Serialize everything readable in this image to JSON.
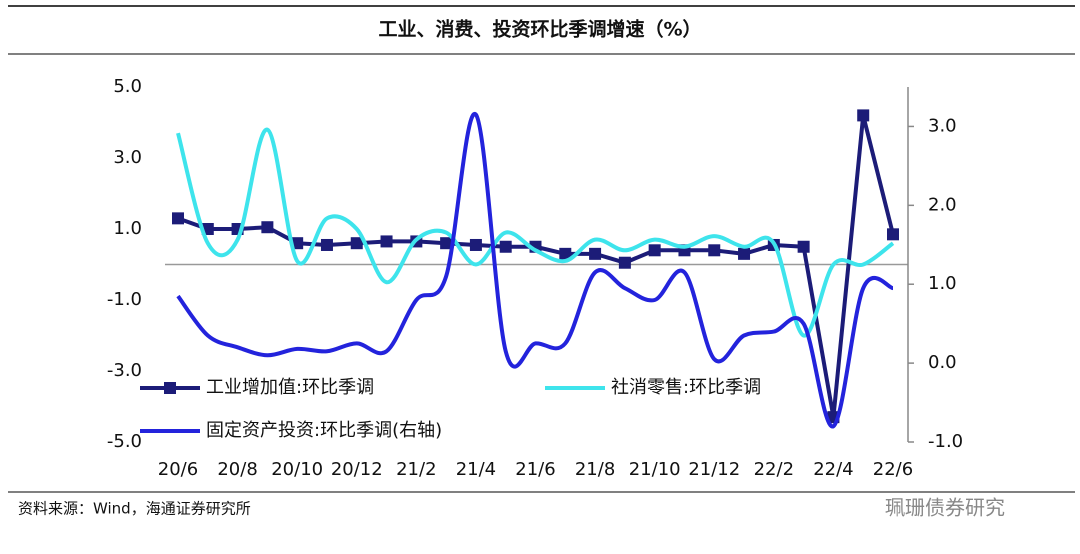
{
  "chart_data": {
    "type": "line",
    "title": "工业、消费、投资环比季调增速（%）",
    "categories": [
      "20/6",
      null,
      "20/8",
      null,
      "20/10",
      null,
      "20/12",
      null,
      "21/2",
      null,
      "21/4",
      null,
      "21/6",
      null,
      "21/8",
      null,
      "21/10",
      null,
      "21/12",
      null,
      "22/2",
      null,
      "22/4",
      null,
      "22/6"
    ],
    "ylim": [
      -5,
      5
    ],
    "yticks": [
      {
        "value": -5,
        "label": "-5.0"
      },
      {
        "value": -3,
        "label": "-3.0"
      },
      {
        "value": -1,
        "label": "-1.0"
      },
      {
        "value": 1,
        "label": "1.0"
      },
      {
        "value": 3,
        "label": "3.0"
      },
      {
        "value": 5,
        "label": "5.0"
      }
    ],
    "y2lim": [
      -1,
      3.5
    ],
    "y2ticks": [
      {
        "value": -1,
        "label": "-1.0"
      },
      {
        "value": 0,
        "label": "0.0"
      },
      {
        "value": 1,
        "label": "1.0"
      },
      {
        "value": 2,
        "label": "2.0"
      },
      {
        "value": 3,
        "label": "3.0"
      }
    ],
    "series": [
      {
        "name": "工业增加值:环比季调",
        "color": "#1c1c78",
        "marker": "square",
        "values": [
          1.3,
          1.0,
          1.0,
          1.05,
          0.6,
          0.55,
          0.6,
          0.65,
          0.65,
          0.6,
          0.55,
          0.5,
          0.5,
          0.3,
          0.3,
          0.05,
          0.4,
          0.4,
          0.4,
          0.3,
          0.55,
          0.5,
          -4.3,
          4.2,
          0.85
        ]
      },
      {
        "name": "社消零售:环比季调",
        "color": "#3ee4ec",
        "smooth": true,
        "values": [
          3.7,
          0.6,
          0.7,
          3.8,
          0.1,
          1.3,
          1.0,
          -0.5,
          0.7,
          0.9,
          0.0,
          0.9,
          0.4,
          0.1,
          0.7,
          0.4,
          0.7,
          0.5,
          0.8,
          0.5,
          0.6,
          -2.0,
          0.0,
          0.0,
          0.6
        ]
      },
      {
        "name": "固定资产投资:环比季调(右轴)",
        "color": "#2323dc",
        "smooth": true,
        "axis": "y2",
        "values": [
          0.85,
          0.35,
          0.2,
          0.1,
          0.18,
          0.15,
          0.25,
          0.15,
          0.8,
          1.1,
          3.15,
          0.15,
          0.25,
          0.25,
          1.15,
          0.95,
          0.8,
          1.15,
          0.05,
          0.35,
          0.4,
          0.5,
          -0.8,
          0.95,
          0.95
        ]
      }
    ],
    "source": "资料来源：Wind，海通证券研究所",
    "watermark": "珮珊债券研究"
  }
}
